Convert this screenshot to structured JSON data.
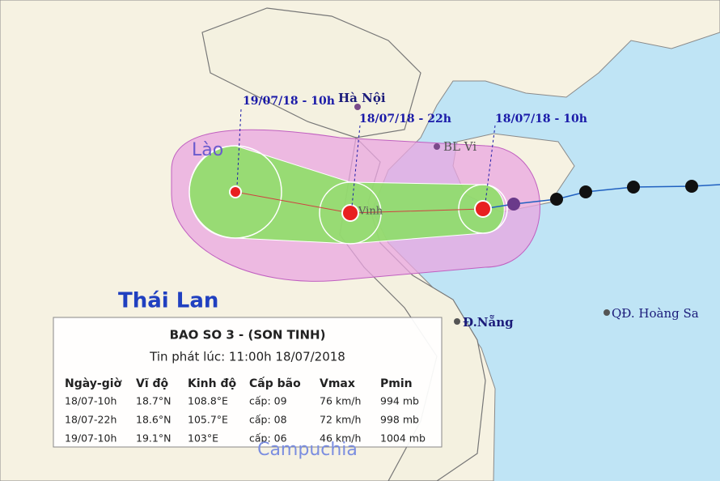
{
  "map": {
    "forecast_times": [
      "19/07/18 - 10h",
      "18/07/18 - 22h",
      "18/07/18 - 10h"
    ],
    "labels": {
      "laos": "Lào",
      "thailand": "Thái Lan",
      "hanoi": "Hà Nội",
      "bl_vi": "BL Vi",
      "vinh": "Vinh",
      "da_nang": "Đ.Nẵng",
      "hoang_sa": "QĐ. Hoàng Sa",
      "cambodia": "Campuchia"
    }
  },
  "info_box": {
    "title": "BAO SO 3 - (SON TINH)",
    "issued": "Tin phát lúc: 11:00h 18/07/2018",
    "table": {
      "headers": [
        "Ngày-giờ",
        "Vĩ độ",
        "Kinh độ",
        "Cấp bão",
        "Vmax",
        "Pmin"
      ],
      "rows": [
        [
          "18/07-10h",
          "18.7°N",
          "108.8°E",
          "cấp: 09",
          "76 km/h",
          "994 mb"
        ],
        [
          "18/07-22h",
          "18.6°N",
          "105.7°E",
          "cấp: 08",
          "72 km/h",
          "998 mb"
        ],
        [
          "19/07-10h",
          "19.1°N",
          "103°E",
          "cấp: 06",
          "46 km/h",
          "1004 mb"
        ]
      ]
    }
  }
}
